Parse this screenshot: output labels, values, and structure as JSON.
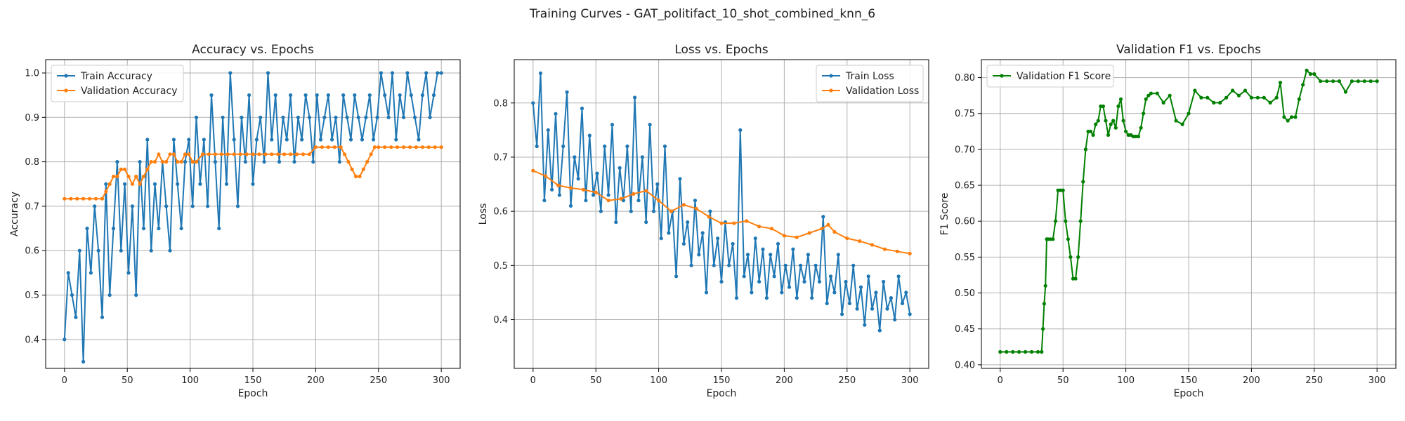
{
  "figure": {
    "suptitle": "Training Curves - GAT_politifact_10_shot_combined_knn_6"
  },
  "chart_data": [
    {
      "type": "line",
      "title": "Accuracy vs. Epochs",
      "xlabel": "Epoch",
      "ylabel": "Accuracy",
      "xlim": [
        -15,
        315
      ],
      "ylim": [
        0.335,
        1.03
      ],
      "xticks": [
        0,
        50,
        100,
        150,
        200,
        250,
        300
      ],
      "yticks": [
        0.4,
        0.5,
        0.6,
        0.7,
        0.8,
        0.9,
        1.0
      ],
      "ytick_labels": [
        "0.4",
        "0.5",
        "0.6",
        "0.7",
        "0.8",
        "0.9",
        "1.0"
      ],
      "grid": true,
      "legend_position": "upper left",
      "series": [
        {
          "name": "Train Accuracy",
          "color": "#1f77b4",
          "x": [
            0,
            3,
            6,
            9,
            12,
            15,
            18,
            21,
            24,
            27,
            30,
            33,
            36,
            39,
            42,
            45,
            48,
            51,
            54,
            57,
            60,
            63,
            66,
            69,
            72,
            75,
            78,
            81,
            84,
            87,
            90,
            93,
            96,
            99,
            102,
            105,
            108,
            111,
            114,
            117,
            120,
            123,
            126,
            129,
            132,
            135,
            138,
            141,
            144,
            147,
            150,
            153,
            156,
            159,
            162,
            165,
            168,
            171,
            174,
            177,
            180,
            183,
            186,
            189,
            192,
            195,
            198,
            201,
            204,
            207,
            210,
            213,
            216,
            219,
            222,
            225,
            228,
            231,
            234,
            237,
            240,
            243,
            246,
            249,
            252,
            255,
            258,
            261,
            264,
            267,
            270,
            273,
            276,
            279,
            282,
            285,
            288,
            291,
            294,
            297,
            300
          ],
          "y": [
            0.4,
            0.55,
            0.5,
            0.45,
            0.6,
            0.35,
            0.65,
            0.55,
            0.7,
            0.6,
            0.45,
            0.75,
            0.5,
            0.65,
            0.8,
            0.6,
            0.75,
            0.55,
            0.7,
            0.5,
            0.8,
            0.65,
            0.85,
            0.6,
            0.75,
            0.65,
            0.8,
            0.7,
            0.6,
            0.85,
            0.75,
            0.65,
            0.8,
            0.85,
            0.7,
            0.9,
            0.75,
            0.85,
            0.7,
            0.95,
            0.8,
            0.65,
            0.9,
            0.75,
            1.0,
            0.85,
            0.7,
            0.9,
            0.8,
            0.95,
            0.75,
            0.85,
            0.9,
            0.8,
            1.0,
            0.85,
            0.95,
            0.8,
            0.9,
            0.85,
            0.95,
            0.8,
            0.9,
            0.85,
            0.95,
            0.9,
            0.8,
            0.95,
            0.85,
            0.9,
            0.95,
            0.85,
            0.9,
            0.8,
            0.95,
            0.9,
            0.85,
            0.95,
            0.9,
            0.85,
            0.9,
            0.95,
            0.85,
            0.9,
            1.0,
            0.95,
            0.9,
            1.0,
            0.85,
            0.95,
            0.9,
            1.0,
            0.95,
            0.9,
            0.85,
            0.95,
            1.0,
            0.9,
            0.95,
            1.0,
            1.0
          ]
        },
        {
          "name": "Validation Accuracy",
          "color": "#ff7f0e",
          "x": [
            0,
            5,
            10,
            15,
            20,
            25,
            30,
            33,
            36,
            39,
            42,
            45,
            48,
            51,
            54,
            57,
            60,
            63,
            66,
            69,
            72,
            75,
            78,
            81,
            84,
            87,
            90,
            93,
            96,
            99,
            102,
            105,
            110,
            115,
            120,
            125,
            130,
            135,
            140,
            145,
            150,
            155,
            160,
            165,
            170,
            175,
            180,
            185,
            190,
            195,
            200,
            205,
            210,
            215,
            220,
            223,
            226,
            229,
            232,
            235,
            238,
            241,
            244,
            247,
            250,
            255,
            260,
            265,
            270,
            275,
            280,
            285,
            290,
            295,
            300
          ],
          "y": [
            0.717,
            0.717,
            0.717,
            0.717,
            0.717,
            0.717,
            0.717,
            0.733,
            0.75,
            0.767,
            0.767,
            0.783,
            0.783,
            0.767,
            0.75,
            0.767,
            0.75,
            0.767,
            0.783,
            0.8,
            0.8,
            0.817,
            0.8,
            0.8,
            0.817,
            0.817,
            0.8,
            0.8,
            0.817,
            0.817,
            0.8,
            0.8,
            0.817,
            0.817,
            0.817,
            0.817,
            0.817,
            0.817,
            0.817,
            0.817,
            0.817,
            0.817,
            0.817,
            0.817,
            0.817,
            0.817,
            0.817,
            0.817,
            0.817,
            0.817,
            0.833,
            0.833,
            0.833,
            0.833,
            0.833,
            0.817,
            0.8,
            0.783,
            0.767,
            0.767,
            0.783,
            0.8,
            0.817,
            0.833,
            0.833,
            0.833,
            0.833,
            0.833,
            0.833,
            0.833,
            0.833,
            0.833,
            0.833,
            0.833,
            0.833
          ]
        }
      ]
    },
    {
      "type": "line",
      "title": "Loss vs. Epochs",
      "xlabel": "Epoch",
      "ylabel": "Loss",
      "xlim": [
        -15,
        315
      ],
      "ylim": [
        0.31,
        0.88
      ],
      "xticks": [
        0,
        50,
        100,
        150,
        200,
        250,
        300
      ],
      "yticks": [
        0.4,
        0.5,
        0.6,
        0.7,
        0.8
      ],
      "ytick_labels": [
        "0.4",
        "0.5",
        "0.6",
        "0.7",
        "0.8"
      ],
      "grid": true,
      "legend_position": "upper right",
      "series": [
        {
          "name": "Train Loss",
          "color": "#1f77b4",
          "x": [
            0,
            3,
            6,
            9,
            12,
            15,
            18,
            21,
            24,
            27,
            30,
            33,
            36,
            39,
            42,
            45,
            48,
            51,
            54,
            57,
            60,
            63,
            66,
            69,
            72,
            75,
            78,
            81,
            84,
            87,
            90,
            93,
            96,
            99,
            102,
            105,
            108,
            111,
            114,
            117,
            120,
            123,
            126,
            129,
            132,
            135,
            138,
            141,
            144,
            147,
            150,
            153,
            156,
            159,
            162,
            165,
            168,
            171,
            174,
            177,
            180,
            183,
            186,
            189,
            192,
            195,
            198,
            201,
            204,
            207,
            210,
            213,
            216,
            219,
            222,
            225,
            228,
            231,
            234,
            237,
            240,
            243,
            246,
            249,
            252,
            255,
            258,
            261,
            264,
            267,
            270,
            273,
            276,
            279,
            282,
            285,
            288,
            291,
            294,
            297,
            300
          ],
          "y": [
            0.8,
            0.72,
            0.855,
            0.62,
            0.75,
            0.64,
            0.78,
            0.63,
            0.72,
            0.82,
            0.61,
            0.7,
            0.66,
            0.79,
            0.62,
            0.74,
            0.63,
            0.67,
            0.6,
            0.72,
            0.63,
            0.76,
            0.58,
            0.68,
            0.62,
            0.72,
            0.6,
            0.81,
            0.62,
            0.7,
            0.58,
            0.76,
            0.6,
            0.65,
            0.55,
            0.72,
            0.56,
            0.6,
            0.48,
            0.66,
            0.54,
            0.58,
            0.5,
            0.62,
            0.52,
            0.56,
            0.45,
            0.6,
            0.5,
            0.55,
            0.47,
            0.58,
            0.5,
            0.54,
            0.44,
            0.75,
            0.48,
            0.52,
            0.45,
            0.55,
            0.47,
            0.53,
            0.44,
            0.52,
            0.48,
            0.54,
            0.45,
            0.5,
            0.46,
            0.53,
            0.44,
            0.5,
            0.47,
            0.52,
            0.44,
            0.5,
            0.47,
            0.59,
            0.43,
            0.48,
            0.45,
            0.52,
            0.41,
            0.47,
            0.43,
            0.5,
            0.42,
            0.46,
            0.39,
            0.48,
            0.42,
            0.45,
            0.38,
            0.47,
            0.42,
            0.44,
            0.4,
            0.48,
            0.43,
            0.45,
            0.41
          ]
        },
        {
          "name": "Validation Loss",
          "color": "#ff7f0e",
          "x": [
            0,
            10,
            20,
            30,
            40,
            50,
            60,
            70,
            80,
            90,
            100,
            110,
            120,
            130,
            140,
            150,
            160,
            170,
            180,
            190,
            200,
            210,
            220,
            230,
            235,
            240,
            250,
            260,
            270,
            280,
            290,
            300
          ],
          "y": [
            0.675,
            0.665,
            0.648,
            0.643,
            0.64,
            0.635,
            0.62,
            0.623,
            0.632,
            0.638,
            0.62,
            0.6,
            0.612,
            0.605,
            0.59,
            0.578,
            0.578,
            0.582,
            0.572,
            0.568,
            0.555,
            0.552,
            0.56,
            0.568,
            0.575,
            0.562,
            0.55,
            0.545,
            0.538,
            0.53,
            0.526,
            0.522
          ]
        }
      ]
    },
    {
      "type": "line",
      "title": "Validation F1 vs. Epochs",
      "xlabel": "Epoch",
      "ylabel": "F1 Score",
      "xlim": [
        -15,
        315
      ],
      "ylim": [
        0.395,
        0.825
      ],
      "xticks": [
        0,
        50,
        100,
        150,
        200,
        250,
        300
      ],
      "yticks": [
        0.4,
        0.45,
        0.5,
        0.55,
        0.6,
        0.65,
        0.7,
        0.75,
        0.8
      ],
      "ytick_labels": [
        "0.40",
        "0.45",
        "0.50",
        "0.55",
        "0.60",
        "0.65",
        "0.70",
        "0.75",
        "0.80"
      ],
      "grid": true,
      "legend_position": "upper left",
      "series": [
        {
          "name": "Validation F1 Score",
          "color": "#008000",
          "x": [
            0,
            5,
            10,
            15,
            20,
            25,
            30,
            33,
            34,
            35,
            36,
            37,
            38,
            40,
            42,
            44,
            46,
            48,
            50,
            52,
            54,
            56,
            58,
            60,
            62,
            64,
            66,
            68,
            70,
            72,
            74,
            76,
            78,
            80,
            82,
            84,
            86,
            88,
            90,
            92,
            94,
            96,
            98,
            100,
            102,
            104,
            106,
            108,
            110,
            112,
            114,
            116,
            118,
            120,
            125,
            130,
            135,
            140,
            145,
            150,
            155,
            160,
            165,
            170,
            175,
            180,
            185,
            190,
            195,
            200,
            205,
            210,
            215,
            220,
            223,
            226,
            229,
            232,
            235,
            238,
            241,
            244,
            247,
            250,
            255,
            260,
            265,
            270,
            275,
            280,
            285,
            290,
            295,
            300
          ],
          "y": [
            0.418,
            0.418,
            0.418,
            0.418,
            0.418,
            0.418,
            0.418,
            0.418,
            0.45,
            0.485,
            0.51,
            0.575,
            0.575,
            0.575,
            0.575,
            0.6,
            0.643,
            0.643,
            0.643,
            0.6,
            0.575,
            0.55,
            0.52,
            0.52,
            0.55,
            0.6,
            0.655,
            0.7,
            0.725,
            0.725,
            0.72,
            0.735,
            0.74,
            0.76,
            0.76,
            0.74,
            0.72,
            0.735,
            0.74,
            0.73,
            0.76,
            0.77,
            0.74,
            0.725,
            0.72,
            0.72,
            0.718,
            0.718,
            0.718,
            0.73,
            0.75,
            0.77,
            0.775,
            0.778,
            0.778,
            0.765,
            0.775,
            0.74,
            0.735,
            0.75,
            0.782,
            0.772,
            0.772,
            0.765,
            0.765,
            0.772,
            0.782,
            0.775,
            0.782,
            0.772,
            0.772,
            0.772,
            0.765,
            0.772,
            0.793,
            0.745,
            0.74,
            0.745,
            0.745,
            0.77,
            0.79,
            0.81,
            0.805,
            0.805,
            0.795,
            0.795,
            0.795,
            0.795,
            0.78,
            0.795,
            0.795,
            0.795,
            0.795,
            0.795
          ]
        }
      ]
    }
  ]
}
